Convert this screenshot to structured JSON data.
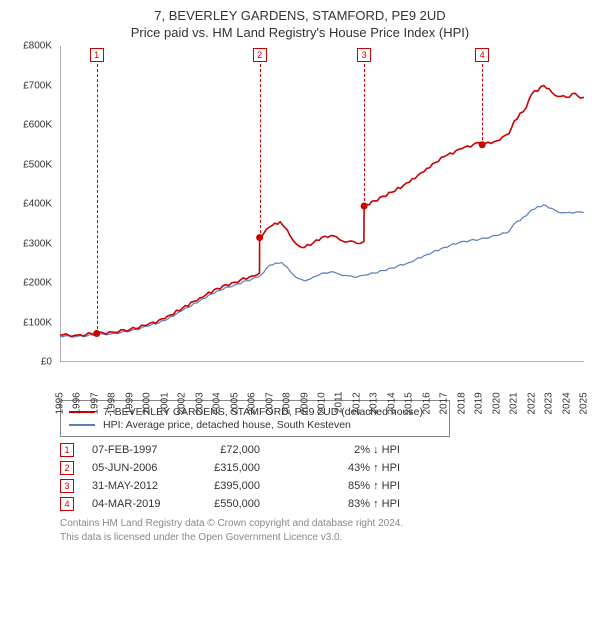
{
  "title_main": "7, BEVERLEY GARDENS, STAMFORD, PE9 2UD",
  "title_sub": "Price paid vs. HM Land Registry's House Price Index (HPI)",
  "chart": {
    "type": "line",
    "background_color": "#ffffff",
    "axis_color": "#666666",
    "xlim": [
      1995,
      2025
    ],
    "ylim": [
      0,
      800000
    ],
    "ytick_step": 100000,
    "yticks_labels": [
      "£0",
      "£100K",
      "£200K",
      "£300K",
      "£400K",
      "£500K",
      "£600K",
      "£700K",
      "£800K"
    ],
    "xticks": [
      1995,
      1996,
      1997,
      1998,
      1999,
      2000,
      2001,
      2002,
      2003,
      2004,
      2005,
      2006,
      2007,
      2008,
      2009,
      2010,
      2011,
      2012,
      2013,
      2014,
      2015,
      2016,
      2017,
      2018,
      2019,
      2020,
      2021,
      2022,
      2023,
      2024,
      2025
    ],
    "label_fontsize": 10,
    "series": [
      {
        "name": "hpi",
        "color": "#5a7fb8",
        "width": 1.2,
        "points": [
          [
            1995,
            65000
          ],
          [
            1996,
            65000
          ],
          [
            1997,
            68000
          ],
          [
            1998,
            72000
          ],
          [
            1999,
            78000
          ],
          [
            2000,
            90000
          ],
          [
            2001,
            105000
          ],
          [
            2002,
            130000
          ],
          [
            2003,
            155000
          ],
          [
            2004,
            180000
          ],
          [
            2005,
            195000
          ],
          [
            2006,
            210000
          ],
          [
            2006.5,
            220000
          ],
          [
            2007,
            245000
          ],
          [
            2007.7,
            252000
          ],
          [
            2008,
            240000
          ],
          [
            2008.5,
            215000
          ],
          [
            2009,
            205000
          ],
          [
            2009.5,
            215000
          ],
          [
            2010,
            225000
          ],
          [
            2010.5,
            228000
          ],
          [
            2011,
            222000
          ],
          [
            2011.5,
            218000
          ],
          [
            2012,
            215000
          ],
          [
            2012.5,
            220000
          ],
          [
            2013,
            225000
          ],
          [
            2014,
            238000
          ],
          [
            2015,
            252000
          ],
          [
            2016,
            272000
          ],
          [
            2017,
            290000
          ],
          [
            2018,
            305000
          ],
          [
            2019,
            310000
          ],
          [
            2020,
            320000
          ],
          [
            2020.7,
            330000
          ],
          [
            2021,
            350000
          ],
          [
            2021.7,
            370000
          ],
          [
            2022,
            385000
          ],
          [
            2022.7,
            398000
          ],
          [
            2023,
            390000
          ],
          [
            2023.5,
            380000
          ],
          [
            2024,
            378000
          ],
          [
            2024.7,
            380000
          ],
          [
            2025,
            378000
          ]
        ]
      },
      {
        "name": "property",
        "color": "#cc0000",
        "width": 1.6,
        "points": [
          [
            1995,
            68000
          ],
          [
            1996,
            68000
          ],
          [
            1997.1,
            72000
          ],
          [
            1998,
            76000
          ],
          [
            1999,
            82000
          ],
          [
            2000,
            94000
          ],
          [
            2001,
            110000
          ],
          [
            2002,
            136000
          ],
          [
            2003,
            162000
          ],
          [
            2004,
            186000
          ],
          [
            2005,
            202000
          ],
          [
            2006,
            218000
          ],
          [
            2006.42,
            225000
          ],
          [
            2006.43,
            315000
          ],
          [
            2007,
            342000
          ],
          [
            2007.6,
            355000
          ],
          [
            2008,
            335000
          ],
          [
            2008.5,
            300000
          ],
          [
            2009,
            290000
          ],
          [
            2009.5,
            302000
          ],
          [
            2010,
            316000
          ],
          [
            2010.5,
            320000
          ],
          [
            2011,
            310000
          ],
          [
            2011.5,
            305000
          ],
          [
            2012,
            300000
          ],
          [
            2012.4,
            305000
          ],
          [
            2012.41,
            395000
          ],
          [
            2013,
            408000
          ],
          [
            2014,
            430000
          ],
          [
            2015,
            455000
          ],
          [
            2016,
            490000
          ],
          [
            2017,
            520000
          ],
          [
            2018,
            540000
          ],
          [
            2019,
            555000
          ],
          [
            2019.17,
            550000
          ],
          [
            2020,
            560000
          ],
          [
            2020.7,
            578000
          ],
          [
            2021,
            610000
          ],
          [
            2021.7,
            645000
          ],
          [
            2022,
            678000
          ],
          [
            2022.7,
            700000
          ],
          [
            2023,
            692000
          ],
          [
            2023.5,
            672000
          ],
          [
            2024,
            670000
          ],
          [
            2024.5,
            680000
          ],
          [
            2024.8,
            668000
          ],
          [
            2025,
            670000
          ]
        ]
      }
    ],
    "sale_markers": [
      {
        "n": "1",
        "x": 1997.1,
        "y": 72000
      },
      {
        "n": "2",
        "x": 2006.43,
        "y": 315000
      },
      {
        "n": "3",
        "x": 2012.41,
        "y": 395000
      },
      {
        "n": "4",
        "x": 2019.17,
        "y": 550000
      }
    ]
  },
  "legend": {
    "items": [
      {
        "color": "#cc0000",
        "label": "7, BEVERLEY GARDENS, STAMFORD, PE9 2UD (detached house)"
      },
      {
        "color": "#5a7fb8",
        "label": "HPI: Average price, detached house, South Kesteven"
      }
    ]
  },
  "sales": [
    {
      "n": "1",
      "date": "07-FEB-1997",
      "price": "£72,000",
      "diff": "2% ↓ HPI"
    },
    {
      "n": "2",
      "date": "05-JUN-2006",
      "price": "£315,000",
      "diff": "43% ↑ HPI"
    },
    {
      "n": "3",
      "date": "31-MAY-2012",
      "price": "£395,000",
      "diff": "85% ↑ HPI"
    },
    {
      "n": "4",
      "date": "04-MAR-2019",
      "price": "£550,000",
      "diff": "83% ↑ HPI"
    }
  ],
  "footer_line1": "Contains HM Land Registry data © Crown copyright and database right 2024.",
  "footer_line2": "This data is licensed under the Open Government Licence v3.0."
}
